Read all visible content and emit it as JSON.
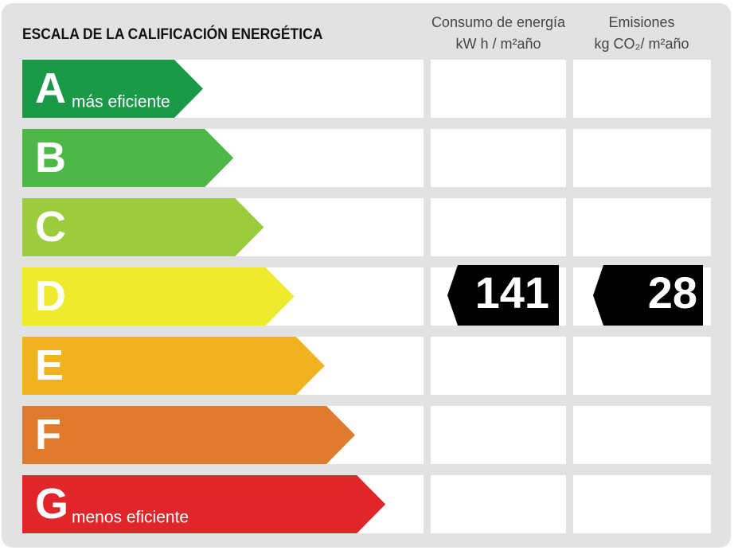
{
  "title": "ESCALA DE LA CALIFICACIÓN ENERGÉTICA",
  "columns": [
    {
      "name": "Consumo de energía",
      "unit": "kW h / m²año"
    },
    {
      "name": "Emisiones",
      "unit": "kg CO₂/ m²año"
    }
  ],
  "ratings": [
    {
      "letter": "A",
      "note": "más eficiente",
      "color": "#1a9a48"
    },
    {
      "letter": "B",
      "color": "#4db848"
    },
    {
      "letter": "C",
      "color": "#9ccc3c"
    },
    {
      "letter": "D",
      "color": "#eeea2e"
    },
    {
      "letter": "E",
      "color": "#f1b21f"
    },
    {
      "letter": "F",
      "color": "#e07a2c"
    },
    {
      "letter": "G",
      "note": "menos eficiente",
      "color": "#e0262b"
    }
  ],
  "values": {
    "energy": 141,
    "emissions": 28
  }
}
